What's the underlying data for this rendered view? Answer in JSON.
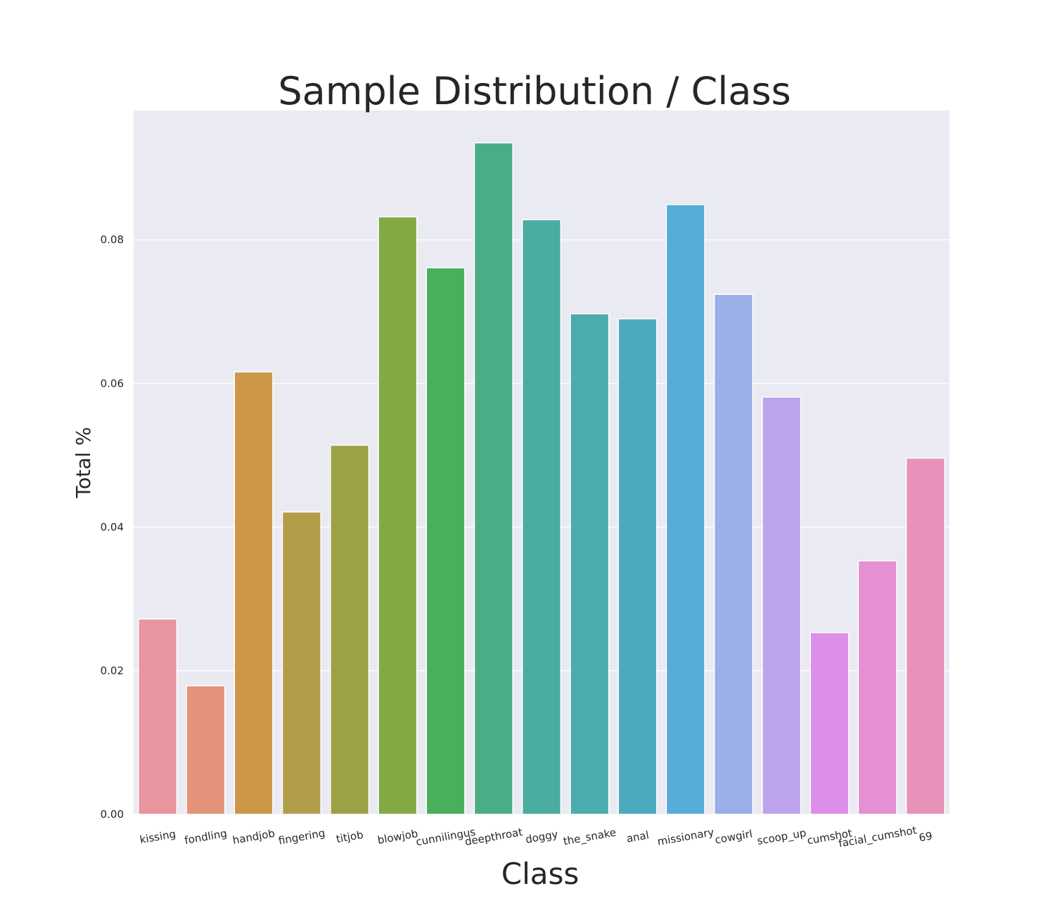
{
  "chart_data": {
    "type": "bar",
    "title": "Sample Distribution / Class",
    "xlabel": "Class",
    "ylabel": "Total %",
    "ylim": [
      0,
      0.098
    ],
    "yticks": [
      "0.00",
      "0.02",
      "0.04",
      "0.06",
      "0.08"
    ],
    "grid": true,
    "categories": [
      "kissing",
      "fondling",
      "handjob",
      "fingering",
      "titjob",
      "blowjob",
      "cunnilingus",
      "deepthroat",
      "doggy",
      "the_snake",
      "anal",
      "missionary",
      "cowgirl",
      "scoop_up",
      "cumshot",
      "facial_cumshot",
      "69"
    ],
    "values": [
      0.0272,
      0.0179,
      0.0616,
      0.0421,
      0.0514,
      0.0832,
      0.0761,
      0.0935,
      0.0828,
      0.0697,
      0.069,
      0.0849,
      0.0724,
      0.0581,
      0.0253,
      0.0353,
      0.0496
    ],
    "colors": [
      "#e8959f",
      "#e4937a",
      "#cd9749",
      "#b39d4a",
      "#9da146",
      "#83a945",
      "#4aaf5b",
      "#4aad88",
      "#4aaba0",
      "#4babae",
      "#4daabe",
      "#56acd7",
      "#9aaee8",
      "#bca3ea",
      "#dc8fe8",
      "#e68fd3",
      "#e891bb"
    ]
  }
}
